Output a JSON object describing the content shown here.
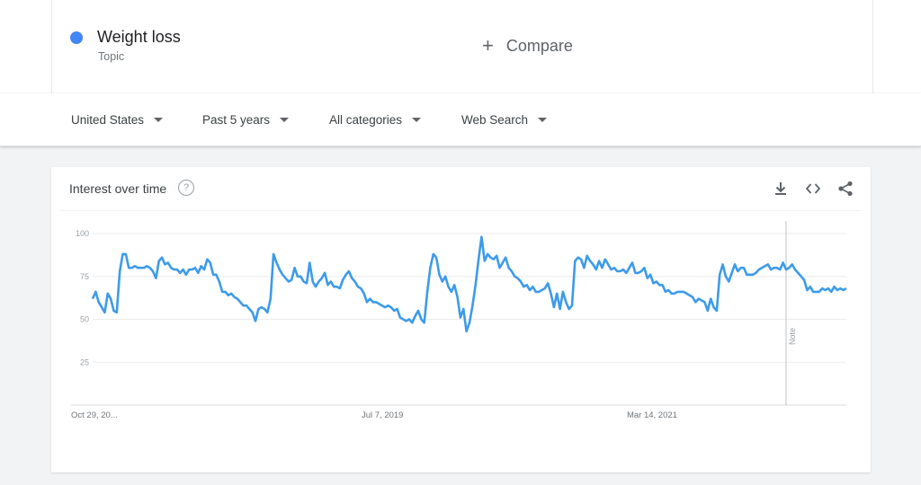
{
  "search_term": {
    "name": "Weight loss",
    "type": "Topic",
    "color": "#4285f4"
  },
  "compare": {
    "label": "Compare"
  },
  "filters": [
    {
      "label": "United States"
    },
    {
      "label": "Past 5 years"
    },
    {
      "label": "All categories"
    },
    {
      "label": "Web Search"
    }
  ],
  "card": {
    "title": "Interest over time",
    "help_icon": "help-circle-icon"
  },
  "actions": [
    "download-icon",
    "embed-code-icon",
    "share-icon"
  ],
  "chart_data": {
    "type": "line",
    "title": "Interest over time",
    "xlabel": "",
    "ylabel": "",
    "ylim": [
      0,
      100
    ],
    "yticks": [
      25,
      50,
      75,
      100
    ],
    "grid": true,
    "legend": "none",
    "line_color": "#3d9be9",
    "xtick_labels": [
      {
        "index": 0,
        "label": "Oct 29, 20..."
      },
      {
        "index": 88,
        "label": "Jul 7, 2019"
      },
      {
        "index": 176,
        "label": "Mar 14, 2021"
      }
    ],
    "note": {
      "index": 230,
      "label": "Note"
    },
    "series": [
      {
        "values": [
          62,
          66,
          60,
          57,
          54,
          65,
          62,
          55,
          54,
          78,
          88,
          88,
          80,
          80,
          81,
          80,
          80,
          80,
          81,
          80,
          78,
          74,
          84,
          86,
          82,
          83,
          80,
          79,
          79,
          77,
          79,
          76,
          79,
          79,
          80,
          77,
          81,
          79,
          85,
          83,
          76,
          76,
          72,
          66,
          66,
          64,
          65,
          63,
          62,
          60,
          58,
          58,
          56,
          54,
          49,
          56,
          57,
          56,
          54,
          62,
          88,
          83,
          79,
          76,
          74,
          72,
          73,
          80,
          75,
          75,
          72,
          71,
          83,
          72,
          69,
          72,
          74,
          77,
          70,
          72,
          69,
          69,
          68,
          73,
          76,
          78,
          74,
          72,
          69,
          68,
          65,
          60,
          62,
          60,
          60,
          59,
          58,
          57,
          58,
          57,
          55,
          56,
          51,
          50,
          49,
          50,
          48,
          52,
          55,
          50,
          48,
          66,
          80,
          88,
          86,
          76,
          72,
          75,
          69,
          66,
          70,
          63,
          51,
          56,
          43,
          48,
          58,
          70,
          85,
          98,
          84,
          88,
          86,
          85,
          87,
          80,
          83,
          86,
          80,
          78,
          75,
          74,
          72,
          69,
          70,
          67,
          69,
          66,
          66,
          67,
          68,
          71,
          65,
          57,
          65,
          56,
          66,
          60,
          56,
          58,
          84,
          86,
          85,
          80,
          87,
          84,
          82,
          79,
          84,
          80,
          85,
          82,
          79,
          80,
          78,
          78,
          79,
          77,
          80,
          83,
          77,
          77,
          78,
          80,
          74,
          76,
          71,
          72,
          70,
          70,
          66,
          67,
          65,
          65,
          66,
          66,
          66,
          65,
          64,
          63,
          60,
          62,
          61,
          60,
          55,
          62,
          57,
          55,
          76,
          82,
          75,
          72,
          77,
          82,
          78,
          80,
          80,
          76,
          76,
          76,
          77,
          79,
          80,
          81,
          82,
          79,
          80,
          80,
          79,
          83,
          79,
          80,
          82,
          79,
          77,
          75,
          73,
          67,
          69,
          66,
          66,
          66,
          68,
          67,
          68,
          66,
          69,
          67,
          68,
          67,
          68
        ]
      }
    ]
  }
}
